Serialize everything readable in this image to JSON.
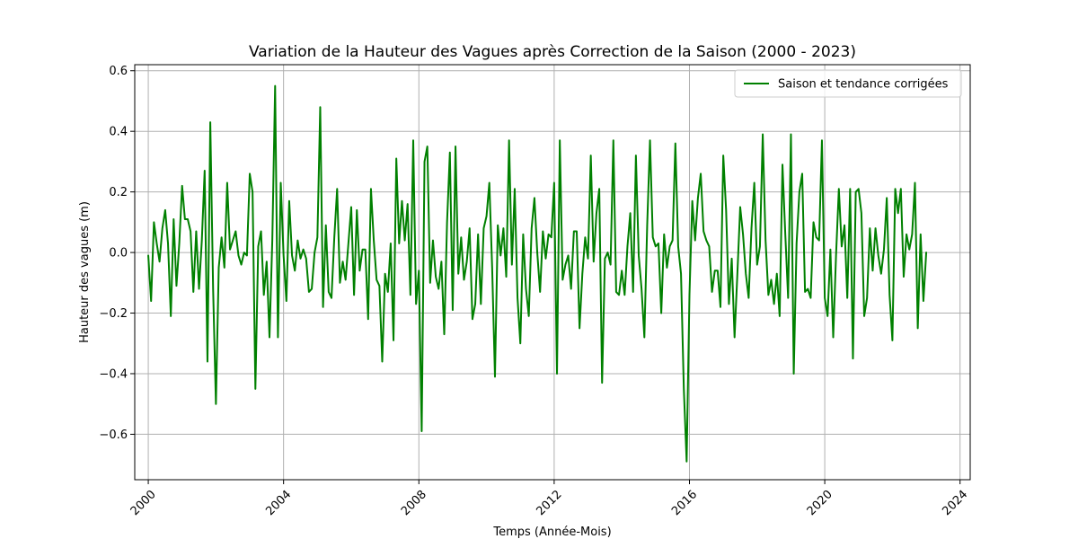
{
  "chart_data": {
    "type": "line",
    "title": "Variation de la Hauteur des Vagues après Correction de la Saison (2000 - 2023)",
    "xlabel": "Temps (Année-Mois)",
    "ylabel": "Hauteur des vagues (m)",
    "xlim": [
      1999.6,
      2024.3
    ],
    "ylim": [
      -0.75,
      0.62
    ],
    "x_ticks": [
      2000,
      2004,
      2008,
      2012,
      2016,
      2020,
      2024
    ],
    "x_tick_labels": [
      "2000",
      "2004",
      "2008",
      "2012",
      "2016",
      "2020",
      "2024"
    ],
    "y_ticks": [
      -0.6,
      -0.4,
      -0.2,
      0.0,
      0.2,
      0.4,
      0.6
    ],
    "y_tick_labels": [
      "−0.6",
      "−0.4",
      "−0.2",
      "0.0",
      "0.2",
      "0.4",
      "0.6"
    ],
    "grid": true,
    "legend_position": "top-right",
    "series": [
      {
        "name": "Saison et tendance corrigées",
        "color": "#008000",
        "x_start": "2000-01",
        "x_end": "2023-01",
        "frequency": "monthly",
        "values": [
          -0.01,
          -0.16,
          0.1,
          0.03,
          -0.03,
          0.08,
          0.14,
          0.03,
          -0.21,
          0.11,
          -0.11,
          0.03,
          0.22,
          0.11,
          0.11,
          0.07,
          -0.13,
          0.07,
          -0.12,
          0.04,
          0.27,
          -0.36,
          0.43,
          -0.12,
          -0.5,
          -0.05,
          0.05,
          -0.05,
          0.23,
          0.01,
          0.04,
          0.07,
          -0.01,
          -0.04,
          0.0,
          -0.01,
          0.26,
          0.2,
          -0.45,
          0.02,
          0.07,
          -0.14,
          -0.03,
          -0.28,
          0.04,
          0.55,
          -0.28,
          0.23,
          -0.01,
          -0.16,
          0.17,
          -0.01,
          -0.06,
          0.04,
          -0.02,
          0.01,
          -0.02,
          -0.13,
          -0.12,
          0.0,
          0.05,
          0.48,
          -0.18,
          0.09,
          -0.13,
          -0.15,
          0.05,
          0.21,
          -0.1,
          -0.03,
          -0.09,
          0.03,
          0.15,
          -0.14,
          0.14,
          -0.06,
          0.01,
          0.01,
          -0.22,
          0.21,
          0.04,
          -0.09,
          -0.11,
          -0.36,
          -0.07,
          -0.13,
          0.03,
          -0.29,
          0.31,
          0.03,
          0.17,
          0.04,
          0.16,
          -0.14,
          0.37,
          -0.17,
          -0.06,
          -0.59,
          0.3,
          0.35,
          -0.1,
          0.04,
          -0.08,
          -0.12,
          -0.03,
          -0.27,
          0.1,
          0.33,
          -0.19,
          0.35,
          -0.07,
          0.05,
          -0.09,
          -0.03,
          0.08,
          -0.22,
          -0.17,
          0.06,
          -0.17,
          0.08,
          0.12,
          0.23,
          -0.05,
          -0.41,
          0.09,
          -0.01,
          0.08,
          -0.08,
          0.37,
          -0.04,
          0.21,
          -0.15,
          -0.3,
          0.06,
          -0.12,
          -0.21,
          0.08,
          0.18,
          0.0,
          -0.13,
          0.07,
          -0.02,
          0.06,
          0.05,
          0.23,
          -0.4,
          0.37,
          -0.09,
          -0.04,
          -0.01,
          -0.12,
          0.07,
          0.07,
          -0.25,
          -0.07,
          0.05,
          -0.02,
          0.32,
          -0.03,
          0.13,
          0.21,
          -0.43,
          -0.02,
          0.0,
          -0.04,
          0.37,
          -0.13,
          -0.14,
          -0.06,
          -0.14,
          0.02,
          0.13,
          -0.13,
          0.32,
          -0.01,
          -0.12,
          -0.28,
          0.09,
          0.37,
          0.05,
          0.02,
          0.03,
          -0.2,
          0.06,
          -0.05,
          0.02,
          0.04,
          0.36,
          0.02,
          -0.07,
          -0.45,
          -0.69,
          -0.14,
          0.17,
          0.04,
          0.18,
          0.26,
          0.07,
          0.04,
          0.02,
          -0.13,
          -0.06,
          -0.06,
          -0.18,
          0.32,
          0.14,
          -0.17,
          -0.02,
          -0.28,
          -0.07,
          0.15,
          0.06,
          -0.07,
          -0.15,
          0.08,
          0.23,
          -0.04,
          0.02,
          0.39,
          0.04,
          -0.14,
          -0.09,
          -0.17,
          -0.07,
          -0.21,
          0.29,
          0.06,
          -0.15,
          0.39,
          -0.4,
          0.03,
          0.2,
          0.26,
          -0.13,
          -0.12,
          -0.15,
          0.1,
          0.05,
          0.04,
          0.37,
          -0.15,
          -0.21,
          0.01,
          -0.28,
          -0.01,
          0.21,
          0.02,
          0.09,
          -0.15,
          0.21,
          -0.35,
          0.2,
          0.21,
          0.13,
          -0.21,
          -0.15,
          0.08,
          -0.06,
          0.08,
          -0.01,
          -0.07,
          0.01,
          0.18,
          -0.14,
          -0.29,
          0.21,
          0.13,
          0.21,
          -0.08,
          0.06,
          0.01,
          0.06,
          0.23,
          -0.25,
          0.06,
          -0.16,
          0.0
        ]
      }
    ]
  }
}
